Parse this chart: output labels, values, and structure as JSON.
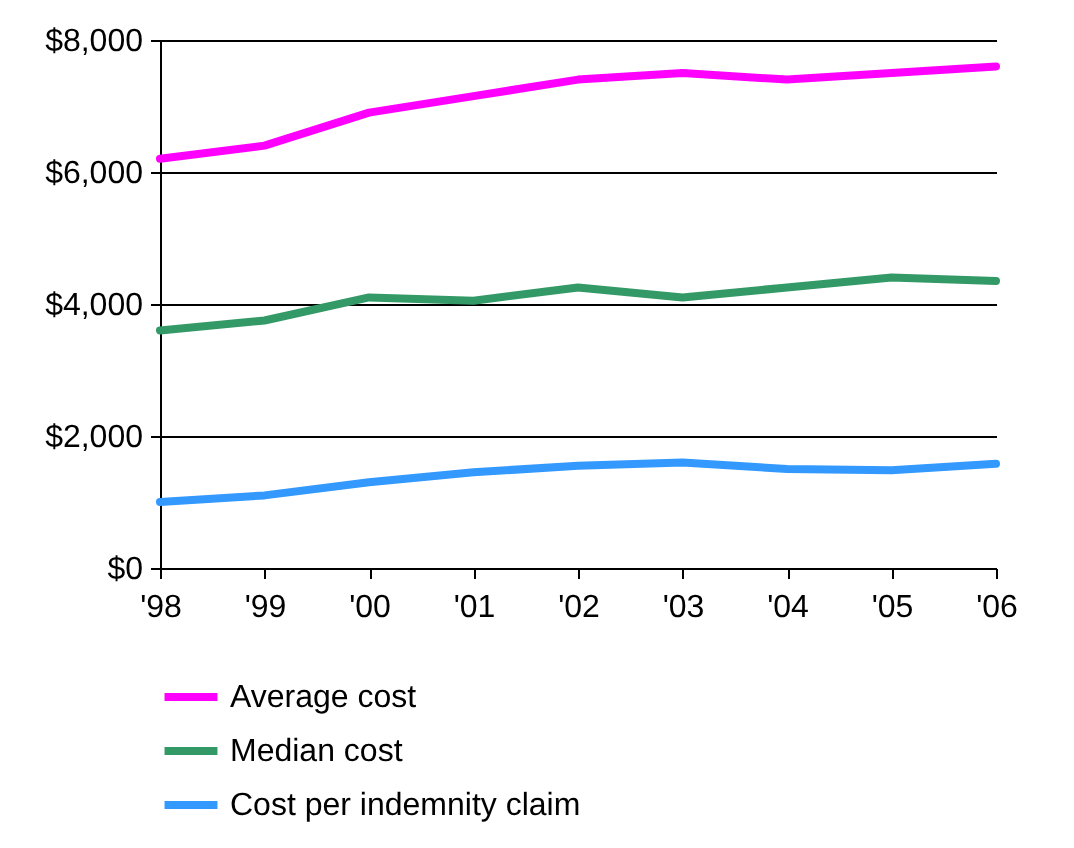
{
  "chart_data": {
    "type": "line",
    "categories": [
      "'98",
      "'99",
      "'00",
      "'01",
      "'02",
      "'03",
      "'04",
      "'05",
      "'06"
    ],
    "series": [
      {
        "name": "Average cost",
        "color": "#ff00ff",
        "values": [
          6200,
          6400,
          6900,
          7150,
          7400,
          7500,
          7400,
          7500,
          7600
        ]
      },
      {
        "name": "Median cost",
        "color": "#339966",
        "values": [
          3600,
          3750,
          4100,
          4050,
          4250,
          4100,
          4250,
          4400,
          4350
        ]
      },
      {
        "name": "Cost per indemnity claim",
        "color": "#3399ff",
        "values": [
          1000,
          1100,
          1300,
          1450,
          1550,
          1600,
          1500,
          1480,
          1580
        ]
      }
    ],
    "ylim": [
      0,
      8000
    ],
    "yticks": [
      {
        "value": 0,
        "label": "$0"
      },
      {
        "value": 2000,
        "label": "$2,000"
      },
      {
        "value": 4000,
        "label": "$4,000"
      },
      {
        "value": 6000,
        "label": "$6,000"
      },
      {
        "value": 8000,
        "label": "$8,000"
      }
    ],
    "grid": "y",
    "legend": "bottom",
    "marker": "none",
    "line_style": "solid"
  }
}
